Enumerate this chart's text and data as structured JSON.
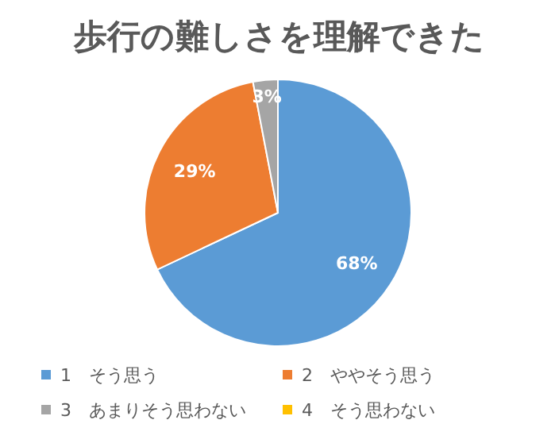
{
  "chart_data": {
    "type": "pie",
    "title": "歩行の難しさを理解できた",
    "categories": [
      "1　そう思う",
      "2　ややそう思う",
      "3　あまりそう思わない",
      "4　そう思わない"
    ],
    "values": [
      68,
      29,
      3,
      0
    ],
    "colors": [
      "#5b9bd5",
      "#ed7d31",
      "#a5a5a5",
      "#ffc000"
    ],
    "value_labels": [
      "68%",
      "29%",
      "3%",
      null
    ],
    "legend": "bottom"
  }
}
